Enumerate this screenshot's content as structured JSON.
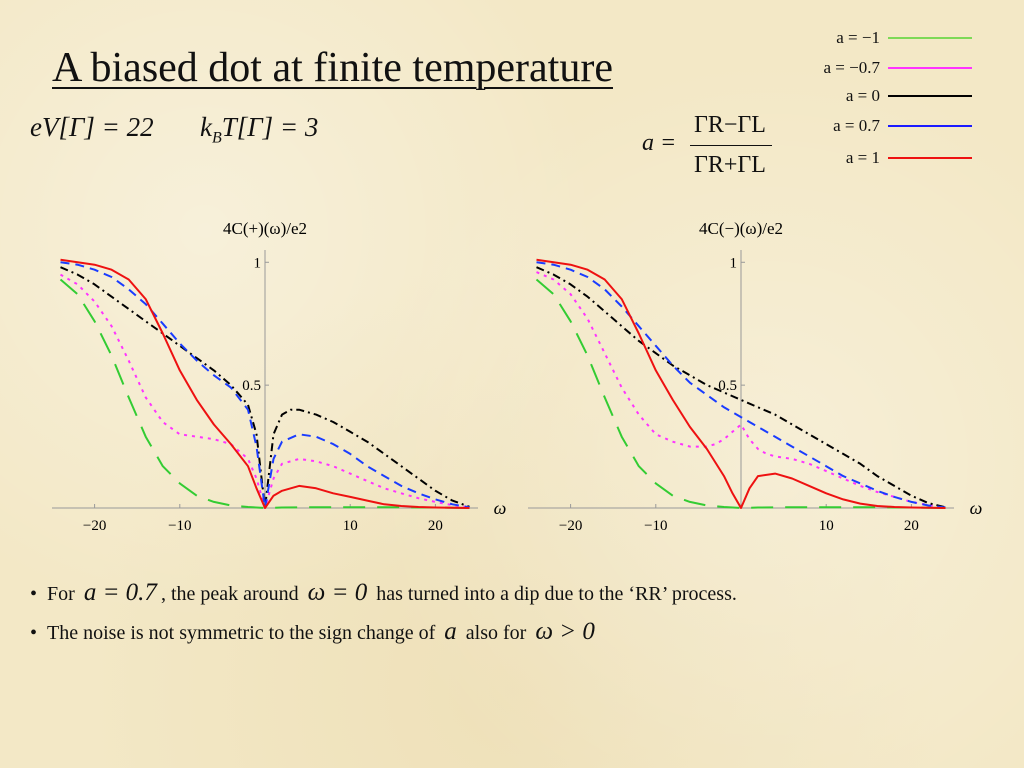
{
  "title": "A biased dot at finite temperature",
  "params": {
    "ev": "eV[Γ] = 22",
    "kt_k": "k",
    "kt_b": "B",
    "kt_rest": "T[Γ] = 3"
  },
  "formula": {
    "lhs": "a =",
    "numerator": "ΓR−ΓL",
    "denominator": "ΓR+ΓL"
  },
  "legend": [
    {
      "label": "a = −1",
      "color": "#7ed957"
    },
    {
      "label": "a = −0.7",
      "color": "#ff33ff"
    },
    {
      "label": "a = 0",
      "color": "#000000"
    },
    {
      "label": "a = 0.7",
      "color": "#1a1aff"
    },
    {
      "label": "a = 1",
      "color": "#ee1111"
    }
  ],
  "bullets": [
    {
      "prefix": "For",
      "math1": "a = 0.7",
      "mid": ", the peak around",
      "math2": "ω = 0",
      "suffix": "has turned into a dip due to the ‘RR’ process."
    },
    {
      "prefix": "The noise is not symmetric to the sign change of",
      "math1": "a",
      "mid": "also for",
      "math2": "ω > 0",
      "suffix": ""
    }
  ],
  "chart_data": [
    {
      "type": "line",
      "title": "4C(+)(ω)/e2",
      "xlabel": "ω",
      "ylabel": "",
      "xlim": [
        -25,
        25
      ],
      "ylim": [
        0,
        1.05
      ],
      "xticks": [
        "−20",
        "−10",
        "10",
        "20"
      ],
      "xtick_values": [
        -20,
        -10,
        10,
        20
      ],
      "yticks": [
        "0.5",
        "1"
      ],
      "ytick_values": [
        0.5,
        1
      ],
      "series": [
        {
          "name": "a = −1",
          "color": "#33cc33",
          "dash": "22,12",
          "x": [
            -24,
            -22,
            -20,
            -18,
            -16,
            -14,
            -12,
            -10,
            -8,
            -6,
            -4,
            -2,
            0,
            2,
            4,
            6,
            8,
            10,
            12,
            14,
            16,
            18,
            20,
            22,
            24
          ],
          "y": [
            0.93,
            0.87,
            0.76,
            0.62,
            0.45,
            0.29,
            0.17,
            0.1,
            0.05,
            0.025,
            0.01,
            0.004,
            0,
            0.002,
            0.003,
            0.003,
            0.003,
            0.003,
            0.003,
            0.003,
            0.003,
            0.002,
            0.002,
            0.001,
            0
          ]
        },
        {
          "name": "a = −0.7",
          "color": "#ff33ff",
          "dash": "3,5",
          "x": [
            -24,
            -22,
            -20,
            -18,
            -16,
            -14,
            -12,
            -10,
            -8,
            -6,
            -4,
            -2,
            -1,
            0,
            1,
            2,
            4,
            6,
            8,
            10,
            12,
            14,
            16,
            18,
            20,
            22,
            24
          ],
          "y": [
            0.95,
            0.91,
            0.84,
            0.74,
            0.6,
            0.45,
            0.35,
            0.3,
            0.29,
            0.28,
            0.26,
            0.2,
            0.12,
            0,
            0.12,
            0.18,
            0.2,
            0.19,
            0.17,
            0.14,
            0.11,
            0.08,
            0.06,
            0.04,
            0.025,
            0.012,
            0.003
          ]
        },
        {
          "name": "a = 0",
          "color": "#000000",
          "dash": "8,4,2,4",
          "x": [
            -24,
            -22,
            -20,
            -18,
            -16,
            -14,
            -12,
            -10,
            -8,
            -6,
            -4,
            -2,
            -1,
            0,
            1,
            2,
            3,
            4,
            6,
            8,
            10,
            12,
            14,
            16,
            18,
            20,
            22,
            24
          ],
          "y": [
            0.98,
            0.95,
            0.91,
            0.86,
            0.81,
            0.76,
            0.71,
            0.66,
            0.61,
            0.56,
            0.5,
            0.42,
            0.3,
            0,
            0.3,
            0.38,
            0.4,
            0.4,
            0.38,
            0.35,
            0.31,
            0.27,
            0.22,
            0.17,
            0.12,
            0.07,
            0.03,
            0.005
          ]
        },
        {
          "name": "a = 0.7",
          "color": "#1a3cff",
          "dash": "9,6",
          "x": [
            -24,
            -22,
            -20,
            -18,
            -16,
            -14,
            -12,
            -10,
            -8,
            -6,
            -4,
            -2,
            -1,
            0,
            1,
            2,
            4,
            6,
            8,
            10,
            12,
            14,
            16,
            18,
            20,
            22,
            24
          ],
          "y": [
            1.0,
            0.99,
            0.97,
            0.94,
            0.89,
            0.83,
            0.75,
            0.67,
            0.6,
            0.54,
            0.49,
            0.4,
            0.25,
            0,
            0.2,
            0.27,
            0.3,
            0.29,
            0.26,
            0.22,
            0.17,
            0.13,
            0.09,
            0.06,
            0.035,
            0.015,
            0.003
          ]
        },
        {
          "name": "a = 1",
          "color": "#ee1111",
          "dash": "",
          "x": [
            -24,
            -22,
            -20,
            -18,
            -16,
            -14,
            -12,
            -10,
            -8,
            -6,
            -4,
            -2,
            -1,
            0,
            1,
            2,
            4,
            6,
            8,
            10,
            12,
            14,
            16,
            18,
            20,
            22,
            24
          ],
          "y": [
            1.01,
            1.0,
            0.99,
            0.97,
            0.93,
            0.85,
            0.71,
            0.56,
            0.44,
            0.34,
            0.26,
            0.17,
            0.08,
            0,
            0.05,
            0.07,
            0.09,
            0.08,
            0.06,
            0.045,
            0.03,
            0.015,
            0.008,
            0.004,
            0.002,
            0.001,
            0
          ]
        }
      ]
    },
    {
      "type": "line",
      "title": "4C(−)(ω)/e2",
      "xlabel": "ω",
      "ylabel": "",
      "xlim": [
        -25,
        25
      ],
      "ylim": [
        0,
        1.05
      ],
      "xticks": [
        "−20",
        "−10",
        "10",
        "20"
      ],
      "xtick_values": [
        -20,
        -10,
        10,
        20
      ],
      "yticks": [
        "0.5",
        "1"
      ],
      "ytick_values": [
        0.5,
        1
      ],
      "series": [
        {
          "name": "a = −1",
          "color": "#33cc33",
          "dash": "22,12",
          "x": [
            -24,
            -22,
            -20,
            -18,
            -16,
            -14,
            -12,
            -10,
            -8,
            -6,
            -4,
            -2,
            0,
            2,
            4,
            6,
            8,
            10,
            12,
            14,
            16,
            18,
            20,
            22,
            24
          ],
          "y": [
            0.93,
            0.87,
            0.76,
            0.62,
            0.45,
            0.29,
            0.17,
            0.1,
            0.05,
            0.025,
            0.01,
            0.004,
            0,
            0.002,
            0.003,
            0.003,
            0.003,
            0.003,
            0.003,
            0.003,
            0.003,
            0.002,
            0.002,
            0.001,
            0
          ]
        },
        {
          "name": "a = −0.7",
          "color": "#ff33ff",
          "dash": "3,5",
          "x": [
            -24,
            -22,
            -20,
            -18,
            -16,
            -14,
            -12,
            -10,
            -8,
            -6,
            -4,
            -3,
            -2,
            -1,
            0,
            1,
            2,
            3,
            4,
            6,
            8,
            10,
            12,
            14,
            16,
            18,
            20,
            22,
            24
          ],
          "y": [
            0.96,
            0.93,
            0.87,
            0.77,
            0.63,
            0.49,
            0.38,
            0.3,
            0.27,
            0.25,
            0.25,
            0.26,
            0.28,
            0.31,
            0.34,
            0.28,
            0.24,
            0.22,
            0.21,
            0.2,
            0.18,
            0.15,
            0.12,
            0.09,
            0.065,
            0.045,
            0.025,
            0.012,
            0.003
          ]
        },
        {
          "name": "a = 0",
          "color": "#000000",
          "dash": "8,4,2,4",
          "x": [
            -24,
            -22,
            -20,
            -18,
            -16,
            -14,
            -12,
            -10,
            -8,
            -6,
            -4,
            -2,
            0,
            2,
            4,
            6,
            8,
            10,
            12,
            14,
            16,
            18,
            20,
            22,
            24
          ],
          "y": [
            0.98,
            0.95,
            0.91,
            0.86,
            0.8,
            0.74,
            0.68,
            0.63,
            0.58,
            0.54,
            0.5,
            0.47,
            0.44,
            0.41,
            0.38,
            0.34,
            0.3,
            0.26,
            0.22,
            0.18,
            0.13,
            0.09,
            0.05,
            0.02,
            0.003
          ]
        },
        {
          "name": "a = 0.7",
          "color": "#1a3cff",
          "dash": "9,6",
          "x": [
            -24,
            -22,
            -20,
            -18,
            -16,
            -14,
            -12,
            -10,
            -8,
            -6,
            -4,
            -2,
            0,
            2,
            4,
            6,
            8,
            10,
            12,
            14,
            16,
            18,
            20,
            22,
            24
          ],
          "y": [
            1.0,
            0.99,
            0.97,
            0.94,
            0.89,
            0.82,
            0.74,
            0.66,
            0.58,
            0.51,
            0.46,
            0.41,
            0.37,
            0.33,
            0.29,
            0.25,
            0.21,
            0.17,
            0.13,
            0.1,
            0.07,
            0.045,
            0.025,
            0.01,
            0.002
          ]
        },
        {
          "name": "a = 1",
          "color": "#ee1111",
          "dash": "",
          "x": [
            -24,
            -22,
            -20,
            -18,
            -16,
            -14,
            -12,
            -10,
            -8,
            -6,
            -4,
            -2,
            -1,
            0,
            1,
            2,
            4,
            6,
            8,
            10,
            12,
            14,
            16,
            18,
            20,
            22,
            24
          ],
          "y": [
            1.01,
            1.0,
            0.99,
            0.97,
            0.93,
            0.85,
            0.71,
            0.56,
            0.44,
            0.33,
            0.24,
            0.13,
            0.06,
            0,
            0.08,
            0.13,
            0.14,
            0.12,
            0.09,
            0.06,
            0.035,
            0.018,
            0.008,
            0.004,
            0.002,
            0.001,
            0
          ]
        }
      ]
    }
  ]
}
